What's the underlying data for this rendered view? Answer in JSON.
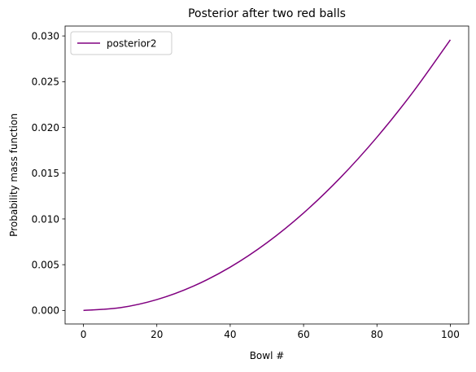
{
  "chart_data": {
    "type": "line",
    "title": "Posterior after two red balls",
    "xlabel": "Bowl #",
    "ylabel": "Probability mass function",
    "xlim": [
      -5,
      105
    ],
    "ylim": [
      -0.00148,
      0.03108
    ],
    "x_ticks": [
      0,
      20,
      40,
      60,
      80,
      100
    ],
    "x_tick_labels": [
      "0",
      "20",
      "40",
      "60",
      "80",
      "100"
    ],
    "y_ticks": [
      0.0,
      0.005,
      0.01,
      0.015,
      0.02,
      0.025,
      0.03
    ],
    "y_tick_labels": [
      "0.000",
      "0.005",
      "0.010",
      "0.015",
      "0.020",
      "0.025",
      "0.030"
    ],
    "grid": false,
    "legend": {
      "placement": "top-left"
    },
    "series": [
      {
        "name": "posterior2",
        "color": "#800080",
        "x": [
          0,
          10,
          20,
          30,
          40,
          50,
          60,
          70,
          80,
          90,
          100
        ],
        "y": [
          0.0,
          0.000296,
          0.001183,
          0.002662,
          0.004732,
          0.007394,
          0.010648,
          0.014493,
          0.01893,
          0.023958,
          0.029578
        ]
      }
    ]
  }
}
